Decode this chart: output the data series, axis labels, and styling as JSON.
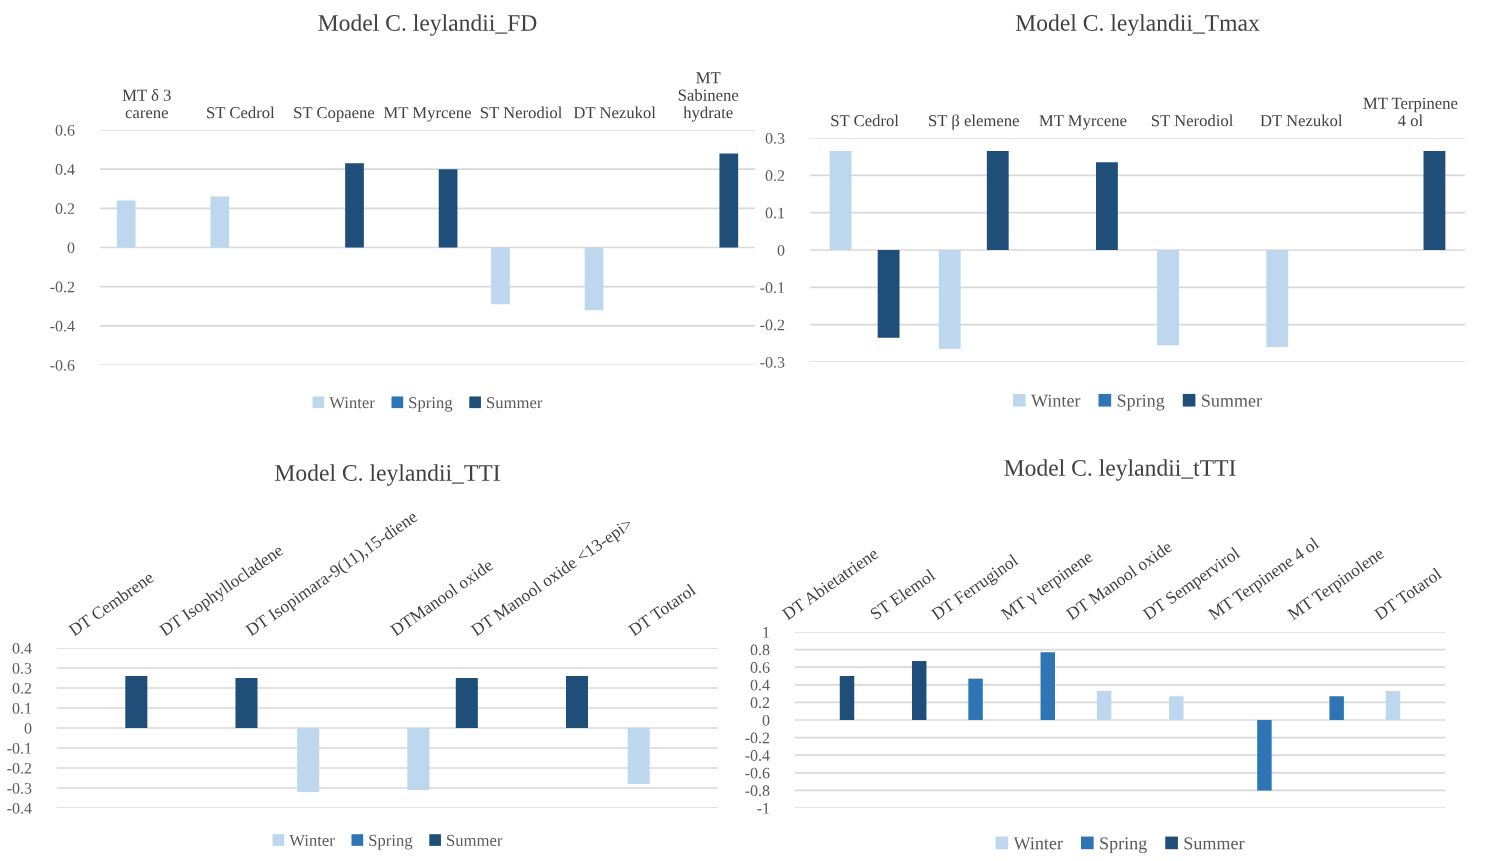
{
  "chart_data": [
    {
      "type": "bar",
      "title": "Model C. leylandii_FD",
      "categories": [
        "MT δ 3 carene",
        "ST Cedrol",
        "ST Copaene",
        "MT Myrcene",
        "ST Nerodiol",
        "DT Nezukol",
        "MT Sabinene hydrate"
      ],
      "series": [
        {
          "name": "Winter",
          "color": "#bdd7ee",
          "values": [
            0.24,
            0.26,
            null,
            null,
            -0.29,
            -0.32,
            null
          ]
        },
        {
          "name": "Spring",
          "color": "#2e75b6",
          "values": [
            null,
            null,
            null,
            null,
            null,
            null,
            null
          ]
        },
        {
          "name": "Summer",
          "color": "#1f4e79",
          "values": [
            null,
            null,
            0.43,
            0.4,
            null,
            null,
            0.48
          ]
        }
      ],
      "ylim": [
        -0.6,
        0.6
      ],
      "yticks": [
        {
          "value": -0.6,
          "label": "-0.6"
        },
        {
          "value": -0.4,
          "label": "-0.4"
        },
        {
          "value": -0.2,
          "label": "-0.2"
        },
        0,
        0.2,
        0.4,
        0.6
      ],
      "grid": "y",
      "legend": "bottom"
    },
    {
      "type": "bar",
      "title": "Model C. leylandii_Tmax",
      "categories": [
        "ST Cedrol",
        "ST β elemene",
        "MT Myrcene",
        "ST Nerodiol",
        "DT Nezukol",
        "MT Terpinene 4 ol"
      ],
      "series": [
        {
          "name": "Winter",
          "color": "#bdd7ee",
          "values": [
            0.265,
            -0.265,
            null,
            -0.255,
            -0.26,
            null
          ]
        },
        {
          "name": "Spring",
          "color": "#2e75b6",
          "values": [
            null,
            null,
            null,
            null,
            null,
            null
          ]
        },
        {
          "name": "Summer",
          "color": "#1f4e79",
          "values": [
            -0.235,
            0.265,
            0.235,
            null,
            null,
            0.265
          ]
        }
      ],
      "ylim": [
        -0.3,
        0.3
      ],
      "yticks": [
        {
          "value": -0.3,
          "label": "-0.3"
        },
        {
          "value": -0.2,
          "label": "-0.2"
        },
        {
          "value": -0.1,
          "label": "-0.1"
        },
        0,
        0.1,
        0.2,
        0.3
      ],
      "grid": "y",
      "legend": "bottom"
    },
    {
      "type": "bar",
      "title": "Model C. leylandii_TTI",
      "categories": [
        "DT Cembrene",
        "DT Isophyllocladene",
        "DT Isopimara-9(11),15-diene",
        "DTManool oxide",
        "DT Manool oxide <13-epi>",
        "DT Totarol"
      ],
      "series": [
        {
          "name": "Winter",
          "color": "#bdd7ee",
          "values": [
            null,
            null,
            -0.32,
            -0.31,
            null,
            -0.28
          ]
        },
        {
          "name": "Spring",
          "color": "#2e75b6",
          "values": [
            null,
            null,
            null,
            null,
            null,
            null
          ]
        },
        {
          "name": "Summer",
          "color": "#1f4e79",
          "values": [
            0.26,
            0.25,
            null,
            0.25,
            0.26,
            null
          ]
        }
      ],
      "ylim": [
        -0.4,
        0.4
      ],
      "yticks": [
        {
          "value": -0.4,
          "label": "-0.4"
        },
        {
          "value": -0.3,
          "label": "-0.3"
        },
        {
          "value": -0.2,
          "label": "-0.2"
        },
        {
          "value": -0.1,
          "label": "-0.1"
        },
        0,
        0.1,
        0.2,
        0.3,
        0.4
      ],
      "grid": "y",
      "legend": "bottom"
    },
    {
      "type": "bar",
      "title": "Model C. leylandii_tTTI",
      "categories": [
        "DT Abietatriene",
        "ST Elemol",
        "DT Ferruginol",
        "MT γ terpinene",
        "DT Manool oxide",
        "DT Sempervirol",
        "MT Terpinene 4 ol",
        "MT Terpinolene",
        "DT Totarol"
      ],
      "series": [
        {
          "name": "Winter",
          "color": "#bdd7ee",
          "values": [
            null,
            null,
            null,
            null,
            0.33,
            0.27,
            null,
            null,
            0.33
          ]
        },
        {
          "name": "Spring",
          "color": "#2e75b6",
          "values": [
            null,
            null,
            0.47,
            0.77,
            null,
            null,
            -0.8,
            0.27,
            null
          ]
        },
        {
          "name": "Summer",
          "color": "#1f4e79",
          "values": [
            0.5,
            0.67,
            null,
            null,
            null,
            null,
            null,
            null,
            null
          ]
        }
      ],
      "ylim": [
        -1,
        1
      ],
      "yticks": [
        {
          "value": -1,
          "label": "-1"
        },
        {
          "value": -0.8,
          "label": "-0.8"
        },
        {
          "value": -0.6,
          "label": "-0.6"
        },
        {
          "value": -0.4,
          "label": "-0.4"
        },
        {
          "value": -0.2,
          "label": "-0.2"
        },
        0,
        0.2,
        0.4,
        0.6,
        0.8,
        1
      ],
      "grid": "y",
      "legend": "bottom"
    }
  ]
}
